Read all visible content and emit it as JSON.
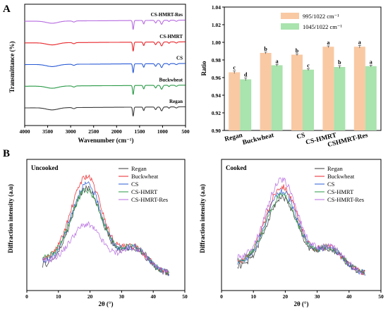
{
  "panel_labels": [
    "A",
    "B"
  ],
  "colors": {
    "regan": "#3a3a3a",
    "buckwheat": "#e8262b",
    "cs": "#2b5cd6",
    "cs_hmrt": "#2a9a47",
    "cs_hmrt_res": "#b66be0",
    "bar_995": "#f9c9a3",
    "bar_1045": "#a9e3ad"
  },
  "chart_data": [
    {
      "type": "line",
      "panel": "A",
      "xlabel": "Wavenumber (cm⁻¹)",
      "ylabel": "Transmittance (%)",
      "xlim": [
        4000,
        500
      ],
      "xticks": [
        "4000",
        "3500",
        "3000",
        "2500",
        "2000",
        "1500",
        "1000",
        "500"
      ],
      "series_labels": [
        "CS-HMRT-Res",
        "CS-HMRT",
        "CS",
        "Buckwheat",
        "Regan"
      ],
      "offsets": [
        4,
        3,
        2,
        1,
        0
      ],
      "bands": [
        {
          "center": 3400,
          "depth": 0.1,
          "width": 180
        },
        {
          "center": 2930,
          "depth": 0.05,
          "width": 40
        },
        {
          "center": 1640,
          "depth": 0.42,
          "width": 18
        },
        {
          "center": 1410,
          "depth": 0.16,
          "width": 20
        },
        {
          "center": 1150,
          "depth": 0.12,
          "width": 25
        },
        {
          "center": 1020,
          "depth": 0.18,
          "width": 30
        },
        {
          "center": 860,
          "depth": 0.06,
          "width": 20
        },
        {
          "center": 700,
          "depth": 0.05,
          "width": 30
        }
      ]
    },
    {
      "type": "bar",
      "panel": "A",
      "ylabel": "Ratio",
      "ylim": [
        0.9,
        1.04
      ],
      "yticks": [
        "0.90",
        "0.92",
        "0.94",
        "0.96",
        "0.98",
        "1.00",
        "1.02",
        "1.04"
      ],
      "categories": [
        "Regan",
        "Buckwheat",
        "CS",
        "CS-HMRT",
        "CSHMRT-Res"
      ],
      "legend_position": "top-right",
      "series": [
        {
          "name": "995/1022 cm⁻¹",
          "values": [
            0.966,
            0.988,
            0.986,
            0.995,
            0.995
          ],
          "errors": [
            0.0015,
            0.001,
            0.001,
            0.001,
            0.0015
          ],
          "letters": [
            "c",
            "b",
            "b",
            "a",
            "a"
          ]
        },
        {
          "name": "1045/1022 cm⁻¹",
          "values": [
            0.958,
            0.974,
            0.969,
            0.972,
            0.973
          ],
          "errors": [
            0.0015,
            0.001,
            0.001,
            0.0015,
            0.001
          ],
          "letters": [
            "d",
            "a",
            "c",
            "b",
            "a"
          ]
        }
      ]
    },
    {
      "type": "line",
      "panel": "B",
      "title": "Uncooked",
      "xlabel": "2θ (°)",
      "ylabel": "Diffraction intensity (a.u)",
      "xlim": [
        0,
        50
      ],
      "xticks": [
        "0",
        "10",
        "20",
        "30",
        "40",
        "50"
      ],
      "series": [
        {
          "name": "Regan",
          "peak": 0.78,
          "base": 0.12
        },
        {
          "name": "Buckwheat",
          "peak": 0.86,
          "base": 0.22
        },
        {
          "name": "CS",
          "peak": 0.8,
          "base": 0.18
        },
        {
          "name": "CS-HMRT",
          "peak": 0.72,
          "base": 0.24
        },
        {
          "name": "CS-HMRT-Res",
          "peak": 0.4,
          "base": 0.2
        }
      ]
    },
    {
      "type": "line",
      "panel": "B",
      "title": "Cooked",
      "xlabel": "2θ (°)",
      "ylabel": "Diffraction intensity (a.u)",
      "xlim": [
        0,
        50
      ],
      "xticks": [
        "0",
        "10",
        "20",
        "30",
        "40",
        "50"
      ],
      "series": [
        {
          "name": "Regan",
          "peak": 0.7,
          "base": 0.1
        },
        {
          "name": "Buckwheat",
          "peak": 0.78,
          "base": 0.18
        },
        {
          "name": "CS",
          "peak": 0.74,
          "base": 0.16
        },
        {
          "name": "CS-HMRT",
          "peak": 0.68,
          "base": 0.2
        },
        {
          "name": "CS-HMRT-Res",
          "peak": 0.82,
          "base": 0.24
        }
      ]
    }
  ]
}
